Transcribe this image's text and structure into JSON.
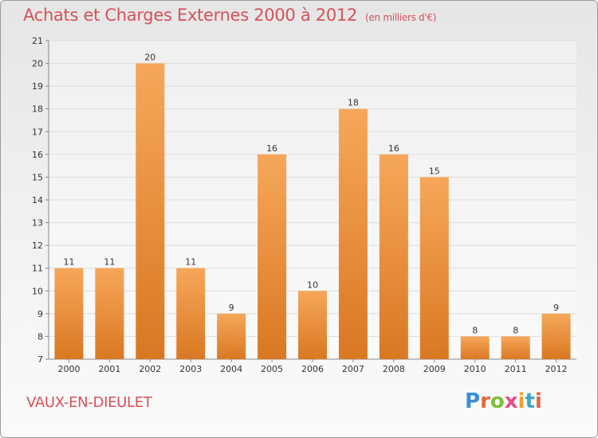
{
  "header": {
    "title": "Achats et Charges Externes 2000 à 2012",
    "unit": "(en milliers d'€)"
  },
  "commune_label": "VAUX-EN-DIEULET",
  "logo": {
    "text": "Proxiti",
    "letter_colors": [
      "#3a8fd6",
      "#e8643c",
      "#7bbf3a",
      "#e84a8c",
      "#f0a22e",
      "#3aa9c9",
      "#e8643c"
    ]
  },
  "colors": {
    "bar_top": "#f6a75a",
    "bar_bottom": "#d97822",
    "title": "#d4525a",
    "grid": "#dcdcdc",
    "axis": "#888888"
  },
  "chart_data": {
    "type": "bar",
    "categories": [
      "2000",
      "2001",
      "2002",
      "2003",
      "2004",
      "2005",
      "2006",
      "2007",
      "2008",
      "2009",
      "2010",
      "2011",
      "2012"
    ],
    "values": [
      11,
      11,
      20,
      11,
      9,
      16,
      10,
      18,
      16,
      15,
      8,
      8,
      9
    ],
    "ylim": [
      7,
      21
    ],
    "yticks": [
      7,
      8,
      9,
      10,
      11,
      12,
      13,
      14,
      15,
      16,
      17,
      18,
      19,
      20,
      21
    ],
    "grid": true
  }
}
